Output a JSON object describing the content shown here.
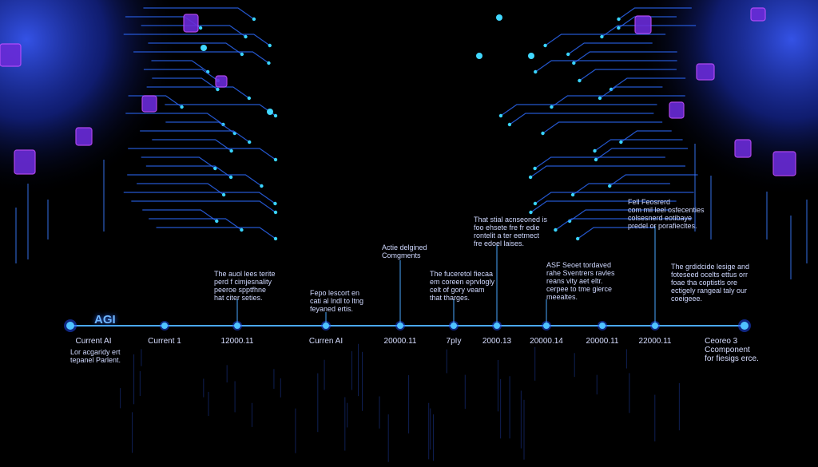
{
  "colors": {
    "timeline": "#2f6bff",
    "node": "#4aa8ff",
    "accent": "#7b2cff",
    "glow": "#1d4dff"
  },
  "timeline": {
    "title": "AGI",
    "ticks": [
      {
        "id": "t0",
        "text": "Current AI"
      },
      {
        "id": "t1",
        "text": "Current 1"
      },
      {
        "id": "t2",
        "text": "12000.11"
      },
      {
        "id": "t3",
        "text": "Curren AI"
      },
      {
        "id": "t4",
        "text": "20000.11"
      },
      {
        "id": "t5",
        "text": "7pIy"
      },
      {
        "id": "t6",
        "text": "2000.13"
      },
      {
        "id": "t7",
        "text": "20000.14"
      },
      {
        "id": "t8",
        "text": "20000.11"
      },
      {
        "id": "t9",
        "text": "22000.11"
      },
      {
        "id": "t10",
        "text": "Ceoreo 3\nCcomponent\nfor fiesigs erce."
      }
    ],
    "below_first": "Lor acgaridy ert\ntepanel Parlent.",
    "annotations": [
      {
        "id": "a1",
        "text": "The auol lees terite\nperd f cimjesnality\npeeroe spptfhne\nhat citer seties."
      },
      {
        "id": "a2",
        "text": "Fepo lescort en\ncati al lndl to ltng\nfeyaned ertis."
      },
      {
        "id": "a3",
        "text": "Actie delgined\nComgments"
      },
      {
        "id": "a4",
        "text": "The fuceretol fiecaa\nem coreen eprvlogly\ncelt of gory veam\nthat tharges."
      },
      {
        "id": "a5",
        "text": "That stial acnseoned is\nfoo ehsete fre fr edie\nrontelit a ter eetmect\nfre edoel laises."
      },
      {
        "id": "a6",
        "text": "ASF Seoet tordaved\nrahe Sventrers ravles\nreans vity aet eltr.\ncerpee to tme gierce\nmeealtes."
      },
      {
        "id": "a7",
        "text": "Fell Feosrerd\ncom mil leel osfecenties\ncolsesnerd eotibaye\npredel or porafiecltes."
      },
      {
        "id": "a8",
        "text": "The grdidcide lesige and\nfoteseed ocelts ettus orr\nfoae tha coptistls ore\nectigely rangeal taly our\ncoeigeee."
      }
    ]
  }
}
